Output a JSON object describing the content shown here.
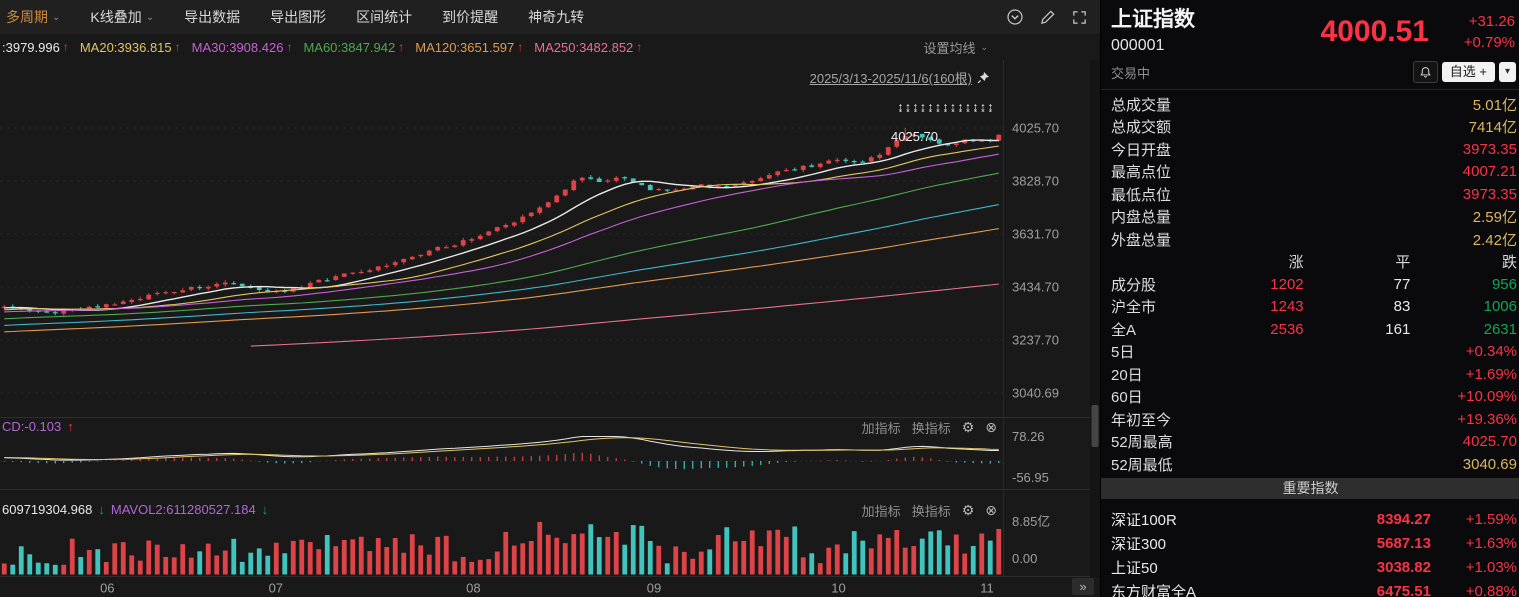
{
  "colors": {
    "red": "#f93345",
    "yellow": "#dcb85e",
    "green": "#12a455",
    "white": "#e8e8e8",
    "purple": "#b168d9",
    "gray": "#9a9a9a"
  },
  "toolbar": {
    "items": [
      {
        "label": "多周期",
        "caret": true,
        "accent": true
      },
      {
        "label": "K线叠加",
        "caret": true
      },
      {
        "label": "导出数据"
      },
      {
        "label": "导出图形"
      },
      {
        "label": "区间统计"
      },
      {
        "label": "到价提醒"
      },
      {
        "label": "神奇九转"
      }
    ]
  },
  "legend": {
    "arrow": "↑",
    "items": [
      {
        "text": ":3979.996",
        "color": "#e8e8e8"
      },
      {
        "text": "MA20:3936.815",
        "color": "#e3c565"
      },
      {
        "text": "MA30:3908.426",
        "color": "#c960d6"
      },
      {
        "text": "MA60:3847.942",
        "color": "#4ea84e"
      },
      {
        "text": "MA120:3651.597",
        "color": "#e09b4e"
      },
      {
        "text": "MA250:3482.852",
        "color": "#e8708f"
      }
    ],
    "settings": {
      "label": "设置均线",
      "caret": "⌄"
    }
  },
  "chart_data": {
    "type": "candlestick",
    "title_range": "2025/3/13-2025/11/6(160根)",
    "markers": "↨↨↨↨↨↨↨↨↨↨↨↨↨",
    "annotation": {
      "text": "4025.70"
    },
    "expander": "»",
    "y_ticks": [
      4025.7,
      3828.7,
      3631.7,
      3434.7,
      3237.7,
      3040.69
    ],
    "x_ticks": [
      {
        "label": "06",
        "f": 0.107
      },
      {
        "label": "07",
        "f": 0.275
      },
      {
        "label": "08",
        "f": 0.472
      },
      {
        "label": "09",
        "f": 0.652
      },
      {
        "label": "10",
        "f": 0.836
      },
      {
        "label": "11",
        "f": 0.984
      }
    ],
    "visible_bars": 118,
    "history_bars": 220,
    "candle_up_color": "#de4348",
    "candle_down_color": "#3fc5bd",
    "trend_anchors": [
      [
        0.0,
        3365
      ],
      [
        0.04,
        3340
      ],
      [
        0.09,
        3362
      ],
      [
        0.16,
        3420
      ],
      [
        0.22,
        3448
      ],
      [
        0.26,
        3402
      ],
      [
        0.31,
        3455
      ],
      [
        0.36,
        3502
      ],
      [
        0.41,
        3556
      ],
      [
        0.45,
        3600
      ],
      [
        0.48,
        3642
      ],
      [
        0.52,
        3705
      ],
      [
        0.555,
        3795
      ],
      [
        0.575,
        3862
      ],
      [
        0.595,
        3812
      ],
      [
        0.62,
        3842
      ],
      [
        0.645,
        3782
      ],
      [
        0.67,
        3802
      ],
      [
        0.7,
        3822
      ],
      [
        0.73,
        3798
      ],
      [
        0.76,
        3852
      ],
      [
        0.8,
        3882
      ],
      [
        0.83,
        3907
      ],
      [
        0.855,
        3896
      ],
      [
        0.875,
        3932
      ],
      [
        0.895,
        3992
      ],
      [
        0.91,
        4012
      ],
      [
        0.925,
        3966
      ],
      [
        0.945,
        3952
      ],
      [
        0.965,
        3988
      ],
      [
        0.985,
        3976
      ],
      [
        1.0,
        4000.51
      ]
    ],
    "ma_lines": [
      {
        "name": "MA10",
        "window": 10,
        "color": "#e8e8e8"
      },
      {
        "name": "MA20",
        "window": 20,
        "color": "#e3c565"
      },
      {
        "name": "MA30",
        "window": 30,
        "color": "#c960d6"
      },
      {
        "name": "MA60",
        "window": 60,
        "color": "#4ea84e"
      },
      {
        "name": "MA90",
        "window": 90,
        "color": "#3fb7c9"
      },
      {
        "name": "MA120",
        "window": 120,
        "color": "#e09b4e"
      },
      {
        "name": "MA250",
        "window": 250,
        "color": "#e8708f"
      }
    ],
    "controls": {
      "add": "加指标",
      "swap": "换指标",
      "gear": "⚙",
      "close": "⊗"
    },
    "macd": {
      "label_parts": [
        {
          "text": "CD:-0.103",
          "color": "purple"
        },
        {
          "text": "↑",
          "color": "red"
        }
      ],
      "axis": [
        "78.26",
        "-56.95"
      ]
    },
    "volume": {
      "label_parts": [
        {
          "text": "609719304.968",
          "color": "white"
        },
        {
          "text": "↓",
          "color": "green"
        },
        {
          "text": "MAVOL2:611280527.184",
          "color": "purple"
        },
        {
          "text": "↓",
          "color": "green"
        }
      ],
      "axis": [
        "8.85亿",
        "0.00"
      ]
    }
  },
  "quote": {
    "name": "上证指数",
    "code": "000001",
    "price": "4000.51",
    "change": "+31.26",
    "change_pct": "+0.79%",
    "status": "交易中",
    "watch_label": "自选 +",
    "dropdown": "▾"
  },
  "stats": [
    {
      "label": "总成交量",
      "value": "5.01亿",
      "color": "yellow"
    },
    {
      "label": "总成交额",
      "value": "7414亿",
      "color": "yellow"
    },
    {
      "label": "今日开盘",
      "value": "3973.35",
      "color": "red"
    },
    {
      "label": "最高点位",
      "value": "4007.21",
      "color": "red"
    },
    {
      "label": "最低点位",
      "value": "3973.35",
      "color": "red"
    },
    {
      "label": "内盘总量",
      "value": "2.59亿",
      "color": "yellow"
    },
    {
      "label": "外盘总量",
      "value": "2.42亿",
      "color": "yellow"
    }
  ],
  "updown": {
    "headers": [
      "涨",
      "平",
      "跌"
    ],
    "rows": [
      {
        "label": "成分股",
        "up": "1202",
        "flat": "77",
        "down": "956"
      },
      {
        "label": "沪全市",
        "up": "1243",
        "flat": "83",
        "down": "1006"
      },
      {
        "label": "全A",
        "up": "2536",
        "flat": "161",
        "down": "2631"
      }
    ]
  },
  "performance": [
    {
      "label": "5日",
      "value": "+0.34%",
      "color": "red"
    },
    {
      "label": "20日",
      "value": "+1.69%",
      "color": "red"
    },
    {
      "label": "60日",
      "value": "+10.09%",
      "color": "red"
    },
    {
      "label": "年初至今",
      "value": "+19.36%",
      "color": "red"
    },
    {
      "label": "52周最高",
      "value": "4025.70",
      "color": "red"
    },
    {
      "label": "52周最低",
      "value": "3040.69",
      "color": "yellow"
    }
  ],
  "important_indices": {
    "title": "重要指数",
    "rows": [
      {
        "name": "深证100R",
        "value": "8394.27",
        "change": "+1.59%"
      },
      {
        "name": "深证300",
        "value": "5687.13",
        "change": "+1.63%"
      },
      {
        "name": "上证50",
        "value": "3038.82",
        "change": "+1.03%"
      },
      {
        "name": "东方财富全A",
        "value": "6475.51",
        "change": "+0.88%"
      }
    ]
  }
}
